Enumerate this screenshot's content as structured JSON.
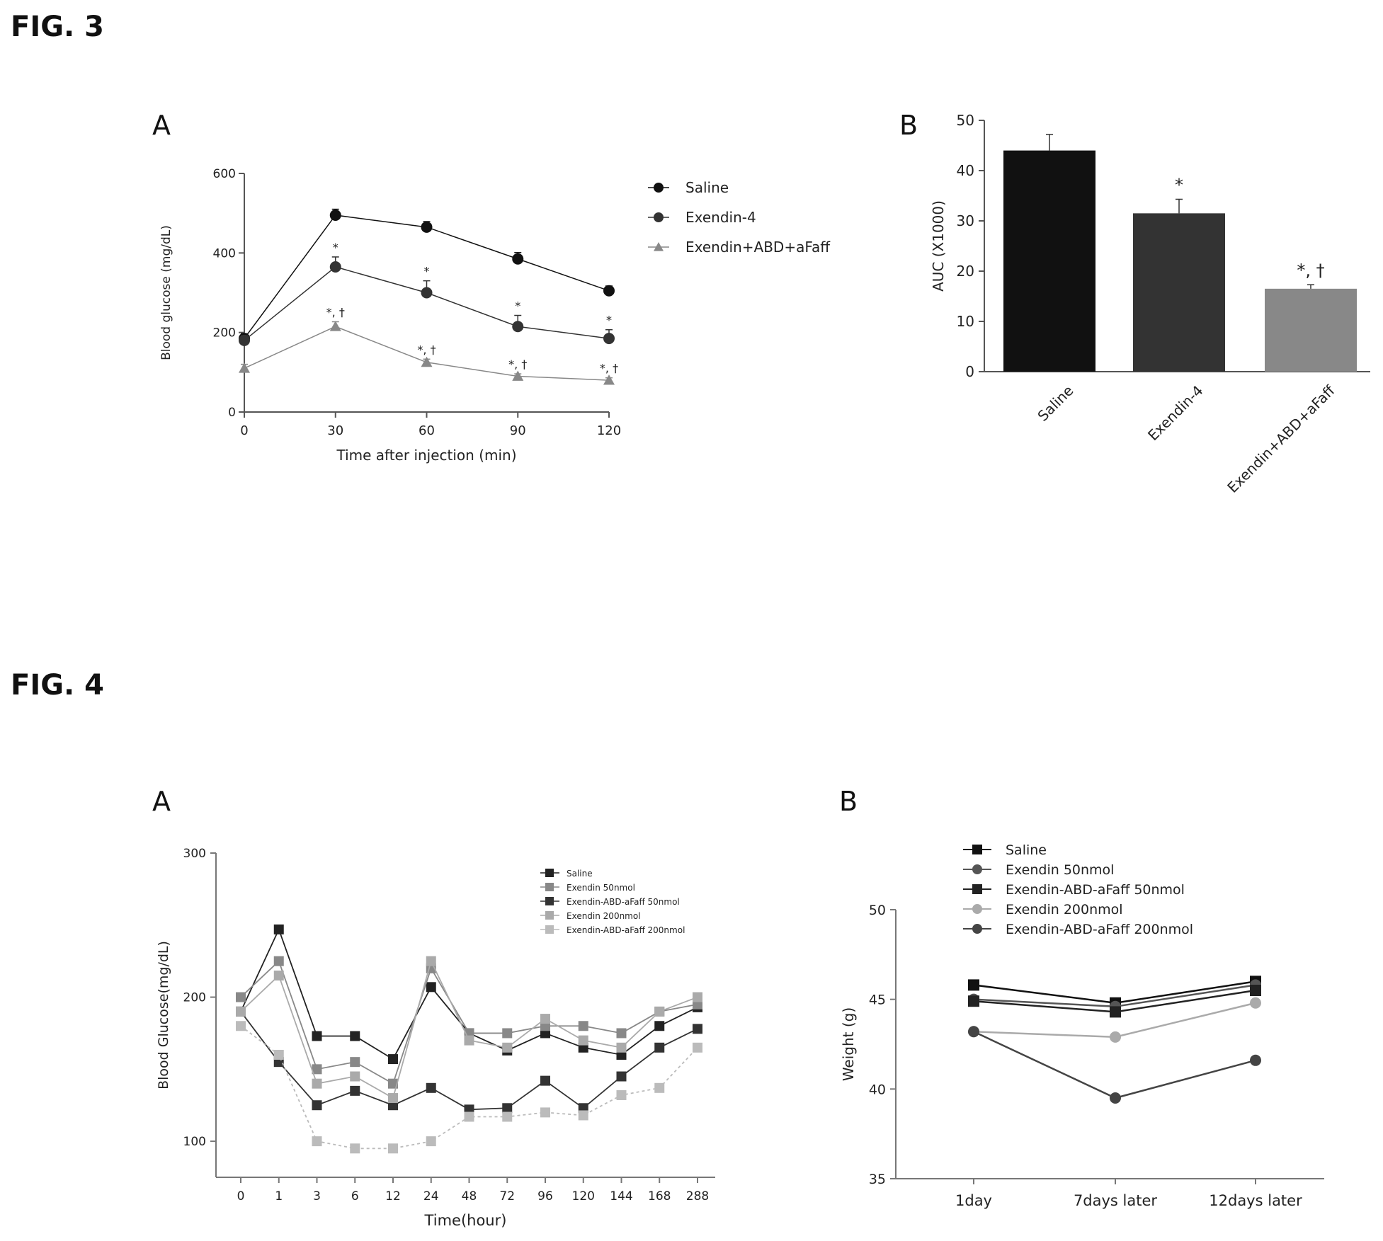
{
  "figures": {
    "fig3": {
      "label": "FIG. 3",
      "panel_a": "A",
      "panel_b": "B"
    },
    "fig4": {
      "label": "FIG. 4",
      "panel_a": "A",
      "panel_b": "B"
    }
  },
  "chart_data": [
    {
      "id": "fig3a",
      "type": "line",
      "xlabel": "Time after injection (min)",
      "ylabel": "Blood glucose (mg/dL)",
      "x": [
        0,
        30,
        60,
        90,
        120
      ],
      "x_tick_labels": [
        "0",
        "30",
        "60",
        "90",
        "120"
      ],
      "ylim": [
        0,
        600
      ],
      "y_ticks": [
        0,
        200,
        400,
        600
      ],
      "y_tick_labels": [
        "0",
        "200",
        "400",
        "600"
      ],
      "legend_position": "right",
      "series": [
        {
          "name": "Saline",
          "color": "#111111",
          "marker": "circle",
          "values": [
            185,
            495,
            465,
            385,
            305
          ],
          "errors": [
            12,
            15,
            14,
            16,
            12
          ]
        },
        {
          "name": "Exendin-4",
          "color": "#333333",
          "marker": "circle",
          "values": [
            180,
            365,
            300,
            215,
            185
          ],
          "errors": [
            12,
            25,
            30,
            28,
            22
          ],
          "annotations": [
            "",
            "*",
            "*",
            "*",
            "*"
          ]
        },
        {
          "name": "Exendin+ABD+aFaff",
          "color": "#888888",
          "marker": "triangle",
          "values": [
            110,
            215,
            125,
            90,
            80
          ],
          "errors": [
            10,
            12,
            8,
            6,
            6
          ],
          "annotations": [
            "",
            "*, †",
            "*, †",
            "*, †",
            "*, †"
          ]
        }
      ]
    },
    {
      "id": "fig3b",
      "type": "bar",
      "ylabel": "AUC (X1000)",
      "categories": [
        "Saline",
        "Exendin-4",
        "Exendin+ABD+aFaff"
      ],
      "values": [
        44,
        31.5,
        16.5
      ],
      "errors": [
        3.2,
        2.8,
        0.8
      ],
      "annotations": [
        "",
        "*",
        "*, †"
      ],
      "colors": [
        "#111111",
        "#333333",
        "#888888"
      ],
      "ylim": [
        0,
        50
      ],
      "y_ticks": [
        0,
        10,
        20,
        30,
        40,
        50
      ],
      "y_tick_labels": [
        "0",
        "10",
        "20",
        "30",
        "40",
        "50"
      ]
    },
    {
      "id": "fig4a",
      "type": "line",
      "xlabel": "Time(hour)",
      "ylabel": "Blood Glucose(mg/dL)",
      "x_tick_labels": [
        "0",
        "1",
        "3",
        "6",
        "12",
        "24",
        "48",
        "72",
        "96",
        "120",
        "144",
        "168",
        "288"
      ],
      "ylim": [
        75,
        300
      ],
      "y_ticks": [
        100,
        200,
        300
      ],
      "y_tick_labels": [
        "100",
        "200",
        "300"
      ],
      "legend_position": "top-right",
      "series": [
        {
          "name": "Saline",
          "color": "#222222",
          "values": [
            190,
            247,
            173,
            173,
            157,
            207,
            175,
            163,
            175,
            165,
            160,
            180,
            193
          ]
        },
        {
          "name": "Exendin 50nmol",
          "color": "#888888",
          "values": [
            200,
            225,
            150,
            155,
            140,
            220,
            175,
            175,
            180,
            180,
            175,
            190,
            195
          ]
        },
        {
          "name": "Exendin-ABD-aFaff 50nmol",
          "color": "#333333",
          "values": [
            190,
            155,
            125,
            135,
            125,
            137,
            122,
            123,
            142,
            123,
            145,
            165,
            178
          ]
        },
        {
          "name": "Exendin 200nmol",
          "color": "#aaaaaa",
          "values": [
            190,
            215,
            140,
            145,
            130,
            225,
            170,
            165,
            185,
            170,
            165,
            190,
            200
          ]
        },
        {
          "name": "Exendin-ABD-aFaff 200nmol",
          "color": "#bbbbbb",
          "values": [
            180,
            160,
            100,
            95,
            95,
            100,
            117,
            117,
            120,
            118,
            132,
            137,
            165
          ]
        }
      ]
    },
    {
      "id": "fig4b",
      "type": "line",
      "ylabel": "Weight (g)",
      "categories": [
        "1day",
        "7days later",
        "12days later"
      ],
      "ylim": [
        35,
        50
      ],
      "y_ticks": [
        35,
        40,
        45,
        50
      ],
      "y_tick_labels": [
        "35",
        "40",
        "45",
        "50"
      ],
      "legend_position": "top",
      "series": [
        {
          "name": "Saline",
          "color": "#111111",
          "values": [
            45.8,
            44.8,
            46.0
          ]
        },
        {
          "name": "Exendin 50nmol",
          "color": "#555555",
          "values": [
            45.0,
            44.6,
            45.8
          ]
        },
        {
          "name": "Exendin-ABD-aFaff 50nmol",
          "color": "#222222",
          "values": [
            44.9,
            44.3,
            45.5
          ]
        },
        {
          "name": "Exendin 200nmol",
          "color": "#aaaaaa",
          "values": [
            43.2,
            42.9,
            44.8
          ]
        },
        {
          "name": "Exendin-ABD-aFaff 200nmol",
          "color": "#444444",
          "values": [
            43.2,
            39.5,
            41.6
          ]
        }
      ]
    }
  ]
}
